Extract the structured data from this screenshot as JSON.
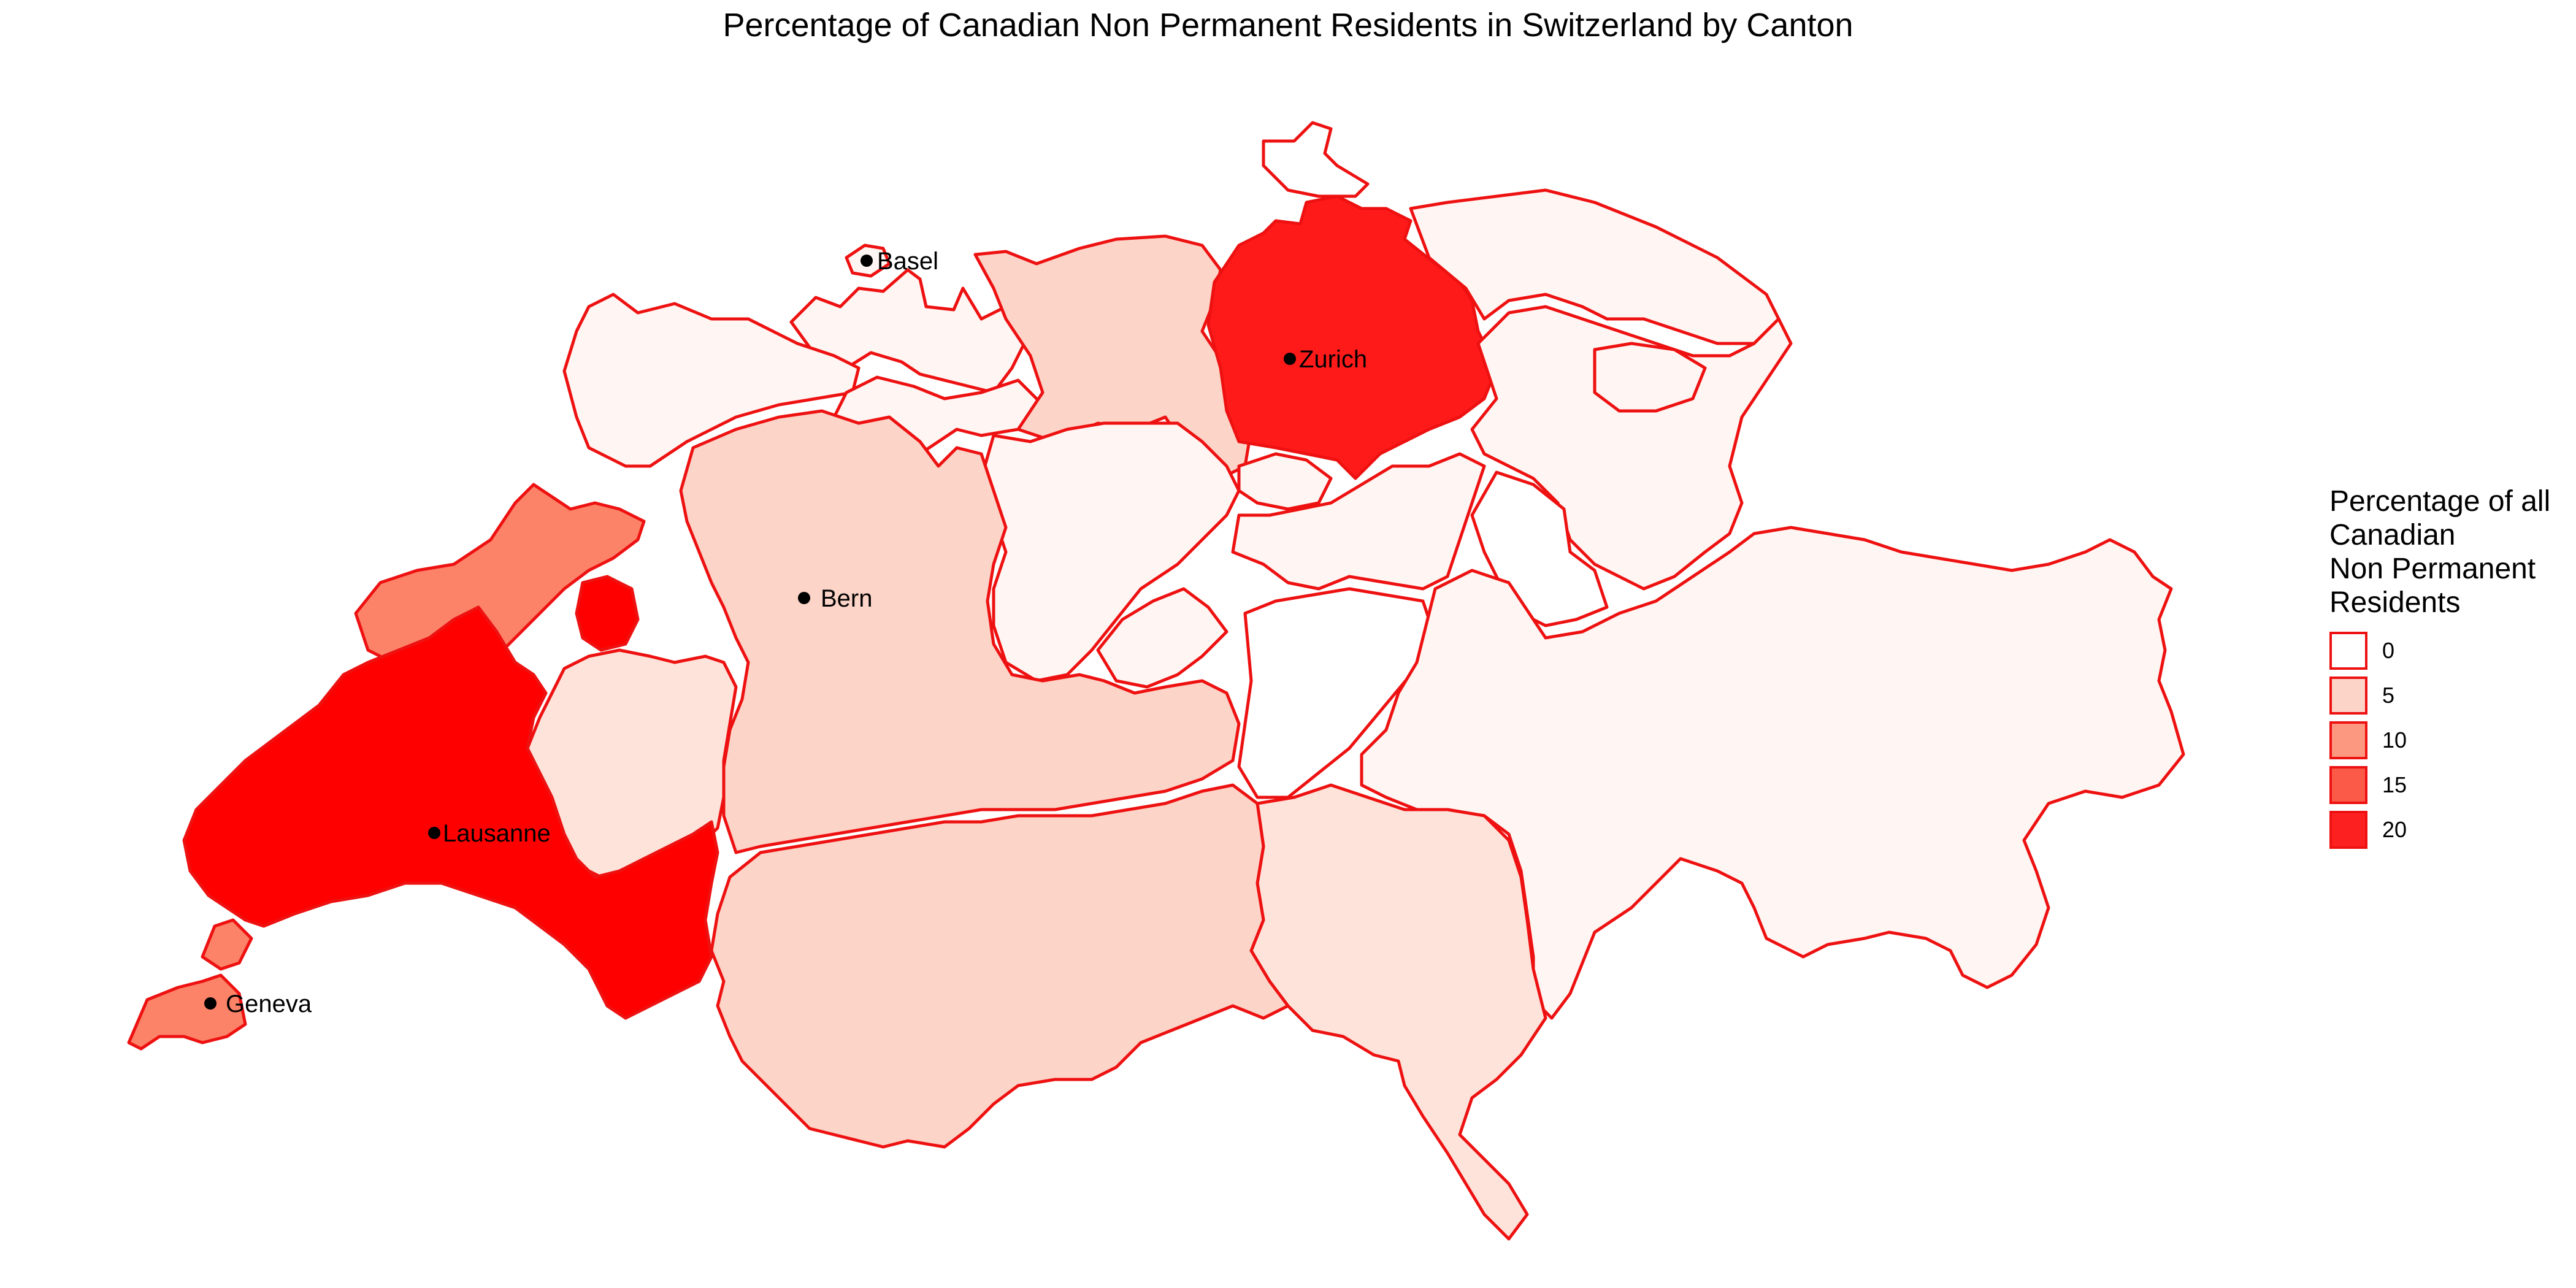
{
  "title": "Percentage of Canadian Non Permanent Residents in Switzerland by Canton",
  "legend": {
    "title_lines": [
      "Percentage of all",
      "Canadian",
      "Non Permanent",
      "Residents"
    ],
    "items": [
      {
        "label": "0",
        "color": "#ffffff"
      },
      {
        "label": "5",
        "color": "#fcd4c8"
      },
      {
        "label": "10",
        "color": "#fc9880"
      },
      {
        "label": "15",
        "color": "#fc5a48"
      },
      {
        "label": "20",
        "color": "#fc2020"
      }
    ]
  },
  "cities": [
    {
      "key": "basel",
      "label": "Basel"
    },
    {
      "key": "zurich",
      "label": "Zurich"
    },
    {
      "key": "bern",
      "label": "Bern"
    },
    {
      "key": "lausanne",
      "label": "Lausanne"
    },
    {
      "key": "geneva",
      "label": "Geneva"
    }
  ],
  "colors": {
    "border": "#ee1111",
    "very_light": "#fff5f2",
    "light": "#fde3da",
    "medium_light": "#fcd4c8",
    "salmon": "#fc8268",
    "red": "#ff1a1a",
    "bright_red": "#ff0000"
  }
}
